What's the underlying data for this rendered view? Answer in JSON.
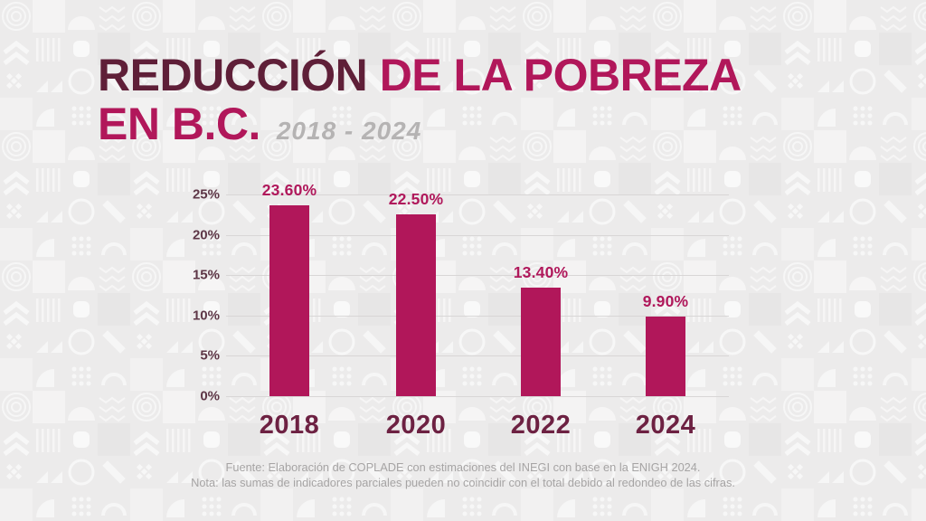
{
  "header": {
    "title_dark": "REDUCCIÓN",
    "title_accent": "DE LA POBREZA",
    "title_line2": "EN B.C.",
    "subtitle": "2018 - 2024"
  },
  "chart_data": {
    "type": "bar",
    "title": "Reducción de la pobreza en B.C. 2018 - 2024",
    "categories": [
      "2018",
      "2020",
      "2022",
      "2024"
    ],
    "values": [
      23.6,
      22.5,
      13.4,
      9.9
    ],
    "value_labels": [
      "23.60%",
      "22.50%",
      "13.40%",
      "9.90%"
    ],
    "xlabel": "",
    "ylabel": "",
    "ylim": [
      0,
      25
    ],
    "yticks": [
      0,
      5,
      10,
      15,
      20,
      25
    ],
    "ytick_labels": [
      "0%",
      "5%",
      "10%",
      "15%",
      "20%",
      "25%"
    ],
    "grid": true,
    "legend": false
  },
  "footer": {
    "source_line": "Fuente: Elaboración de COPLADE con estimaciones del INEGI con base en la ENIGH 2024.",
    "note_line": "Nota: las sumas de indicadores parciales pueden no coincidir con el total debido al redondeo de las cifras."
  },
  "colors": {
    "background": "#ecebeb",
    "title_dark": "#5f1f38",
    "accent_magenta": "#b1175a",
    "subtitle_gray": "#b5b3b3",
    "bar": "#b1175a",
    "value_label": "#b0185b",
    "x_label": "#6d2142",
    "y_label": "#5e3747",
    "gridline": "#d8d6d6",
    "footer_text": "#a6a4a4"
  }
}
